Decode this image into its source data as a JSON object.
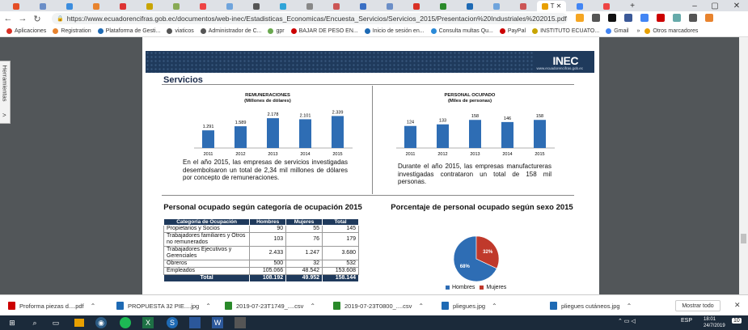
{
  "browser": {
    "tabs_colors": [
      "#e44d26",
      "#6b8ec7",
      "#3c8dde",
      "#e8832e",
      "#d33",
      "#c8a400",
      "#8a5",
      "#e44",
      "#6fa4dc",
      "#555",
      "#2fa4d8",
      "#888",
      "#c55",
      "#3a6fc4",
      "#6b8ec7",
      "#d93025",
      "#2a8a2a",
      "#1e6ab4",
      "#6fa4dc",
      "#c55",
      "#e8a000",
      "#4285f4",
      "#e44"
    ],
    "active_tab_label": "T",
    "new_tab": "+",
    "min": "–",
    "max": "▢",
    "close": "✕",
    "url": "https://www.ecuadorencifras.gob.ec/documentos/web-inec/Estadisticas_Economicas/Encuesta_Servicios/Servicios_2015/Presentacion%20Industriales%202015.pdf"
  },
  "bookmarks": [
    {
      "label": "Aplicaciones",
      "color": "#d93025"
    },
    {
      "label": "Registration",
      "color": "#e8832e"
    },
    {
      "label": "Plataforma de Gesti...",
      "color": "#1e6ab4"
    },
    {
      "label": "viaticos",
      "color": "#555"
    },
    {
      "label": "Administrador de C...",
      "color": "#555"
    },
    {
      "label": "gpr",
      "color": "#6aa84f"
    },
    {
      "label": "BAJAR DE PESO EN...",
      "color": "#c00"
    },
    {
      "label": "Inicio de sesión en...",
      "color": "#1e6ab4"
    },
    {
      "label": "Consulta multas Qu...",
      "color": "#2a8ad8"
    },
    {
      "label": "PayPal",
      "color": "#c00"
    },
    {
      "label": "INSTITUTO ECUATO...",
      "color": "#c8a400"
    },
    {
      "label": "Gmail",
      "color": "#4285f4"
    },
    {
      "label": "»",
      "color": ""
    },
    {
      "label": "Otros marcadores",
      "color": "#e8a000"
    }
  ],
  "viewer": {
    "sidebar_label": "Herramientas",
    "sidebar_arrow": ">"
  },
  "pdf": {
    "logo": "INEC",
    "logo_sub": "www.ecuadorencifras.gob.ec",
    "section_title": "Servicios",
    "chart_rem_title": "REMUNERACIONES\n(Millones de dólares)",
    "chart_per_title": "PERSONAL OCUPADO\n(Miles de personas)",
    "para_left": "En el año 2015, las empresas de servicios investigadas desembolsaron un total de 2,34 mil millones de dólares por concepto de remuneraciones.",
    "para_right": "Durante el año 2015, las empresas manufactureras investigadas contrataron un total de 158 mil personas.",
    "table_title": "Personal ocupado según categoría de ocupación 2015",
    "pie_title": "Porcentaje de personal ocupado según sexo 2015",
    "table": {
      "headers": [
        "Categoría de Ocupación",
        "Hombres",
        "Mujeres",
        "Total"
      ],
      "rows": [
        [
          "Propietarios y Socios",
          "90",
          "55",
          "145"
        ],
        [
          "Trabajadores familiares y Otros no remunerados",
          "103",
          "76",
          "179"
        ],
        [
          "Trabajadores Ejecutivos y Gerenciales",
          "2.433",
          "1.247",
          "3.680"
        ],
        [
          "Obreros",
          "500",
          "32",
          "532"
        ],
        [
          "Empleados",
          "105.066",
          "48.542",
          "153.608"
        ]
      ],
      "total": [
        "Total",
        "108.192",
        "49.952",
        "158.144"
      ]
    },
    "legend": {
      "hombres": "Hombres",
      "mujeres": "Mujeres"
    }
  },
  "chart_data": [
    {
      "type": "bar",
      "title": "REMUNERACIONES (Millones de dólares)",
      "categories": [
        "2011",
        "2012",
        "2013",
        "2014",
        "2015"
      ],
      "values": [
        1291,
        1589,
        2178,
        2101,
        2339
      ],
      "labels": [
        "1.291",
        "1.589",
        "2.178",
        "2.101",
        "2.339"
      ],
      "color": "#2e6db4"
    },
    {
      "type": "bar",
      "title": "PERSONAL OCUPADO (Miles de personas)",
      "categories": [
        "2011",
        "2012",
        "2013",
        "2014",
        "2015"
      ],
      "values": [
        124,
        133,
        158,
        146,
        158
      ],
      "labels": [
        "124",
        "133",
        "158",
        "146",
        "158"
      ],
      "color": "#2e6db4"
    },
    {
      "type": "pie",
      "title": "Porcentaje de personal ocupado según sexo 2015",
      "categories": [
        "Hombres",
        "Mujeres"
      ],
      "values": [
        68,
        32
      ],
      "labels": [
        "68%",
        "32%"
      ],
      "colors": [
        "#2e6db4",
        "#c0392b"
      ]
    }
  ],
  "downloads": [
    {
      "name": "Proforma piezas d....pdf",
      "color": "#c00"
    },
    {
      "name": "PROPUESTA 32 PIE....jpg",
      "color": "#1e6ab4"
    },
    {
      "name": "2019-07-23T1749_....csv",
      "color": "#2a8a2a"
    },
    {
      "name": "2019-07-23T0800_....csv",
      "color": "#2a8a2a"
    },
    {
      "name": "pliegues.jpg",
      "color": "#1e6ab4"
    },
    {
      "name": "pliegues cutáneos.jpg",
      "color": "#1e6ab4"
    }
  ],
  "downloads_show_all": "Mostrar todo",
  "taskbar": {
    "lang": "ESP",
    "time": "18:01",
    "date": "24/7/2019",
    "notif": "10"
  }
}
